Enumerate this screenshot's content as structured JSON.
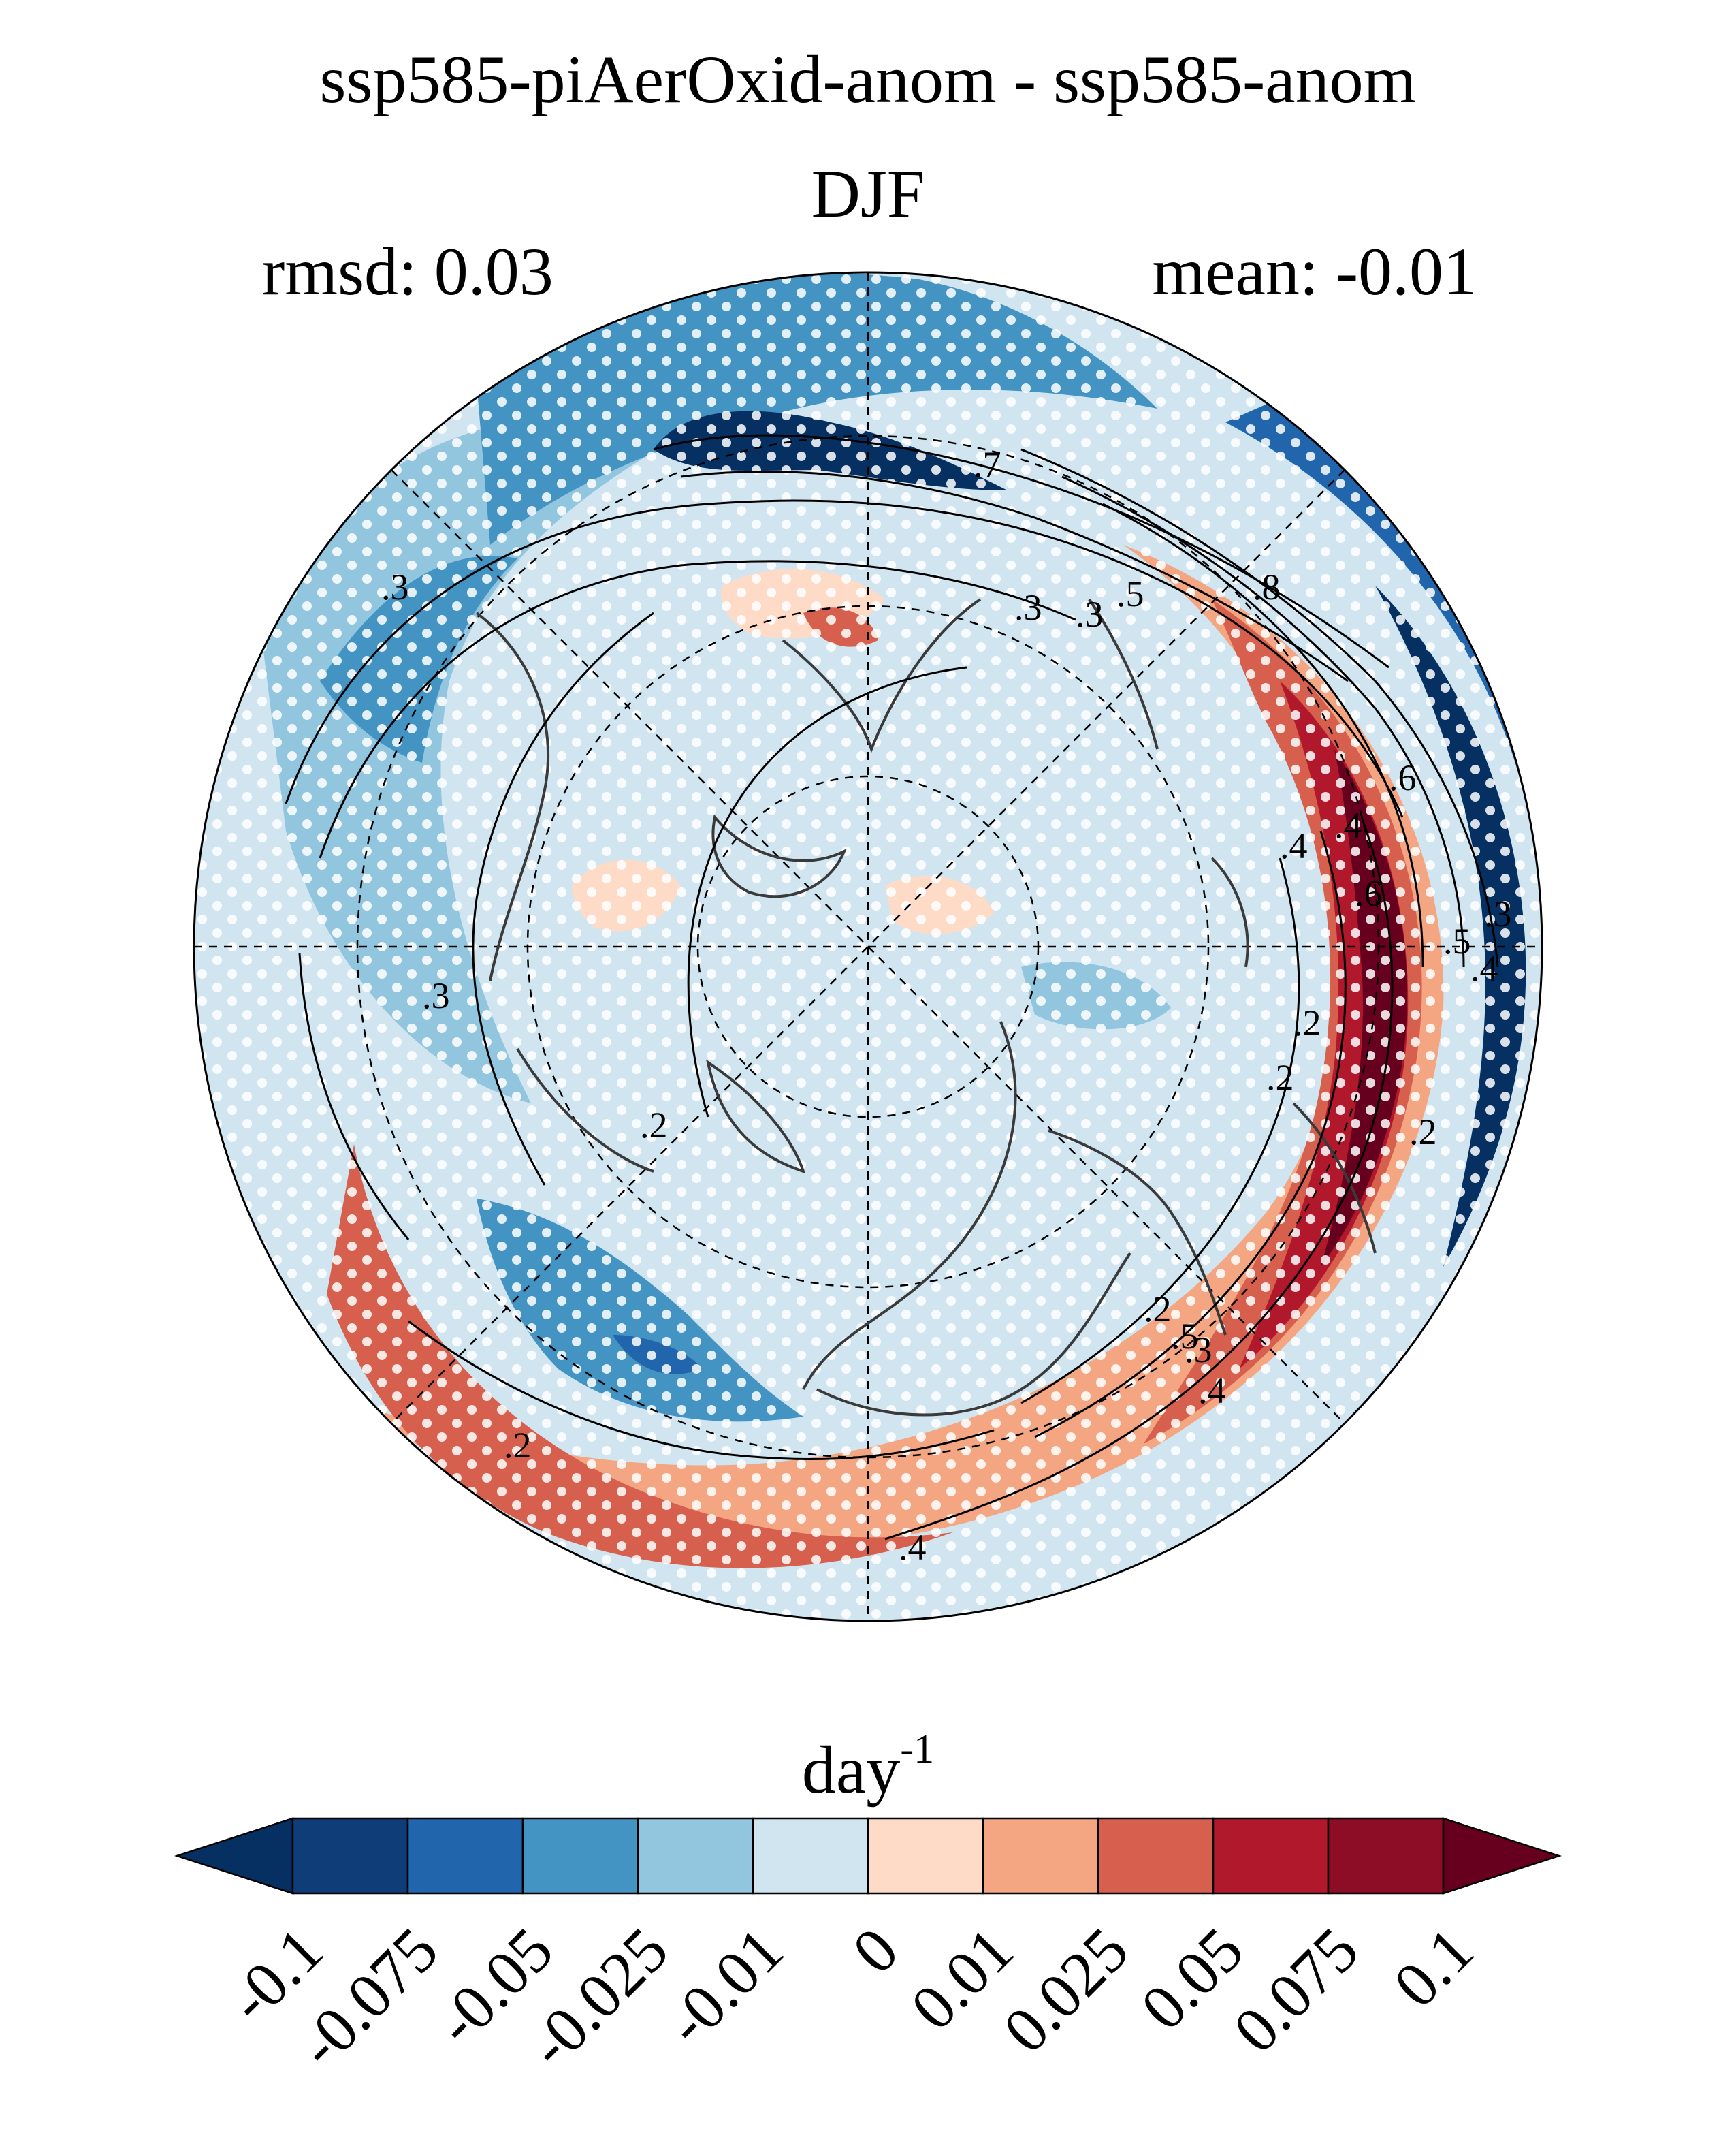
{
  "chart_data": {
    "type": "heatmap",
    "projection": "north polar stereographic",
    "title": "ssp585-piAerOxid-anom - ssp585-anom",
    "subtitle": "DJF",
    "stats": {
      "left": "rmsd: 0.03",
      "right": "mean: -0.01"
    },
    "colorbar": {
      "title": "day",
      "title_superscript": "-1",
      "levels": [
        "-0.1",
        "-0.075",
        "-0.05",
        "-0.025",
        "-0.01",
        "0",
        "0.01",
        "0.025",
        "0.05",
        "0.075",
        "0.1"
      ],
      "colors": [
        "#053061",
        "#0f3d78",
        "#2166ac",
        "#4393c3",
        "#92c5de",
        "#d1e5f0",
        "#fddbc7",
        "#f4a582",
        "#d6604d",
        "#b2182b",
        "#8c0d25",
        "#67001f"
      ],
      "extend": "both"
    },
    "contour_labels": [
      ".7",
      ".3",
      ".3",
      ".5",
      ".8",
      ".6",
      ".4",
      ".4",
      ".6",
      ".5",
      ".4",
      ".2",
      ".2",
      ".3",
      ".3",
      ".2",
      ".2",
      ".2",
      ".3",
      ".4",
      ".5",
      ".4",
      ".3",
      ".2"
    ],
    "stippling": "white dots mark grid points where the difference is significant"
  }
}
